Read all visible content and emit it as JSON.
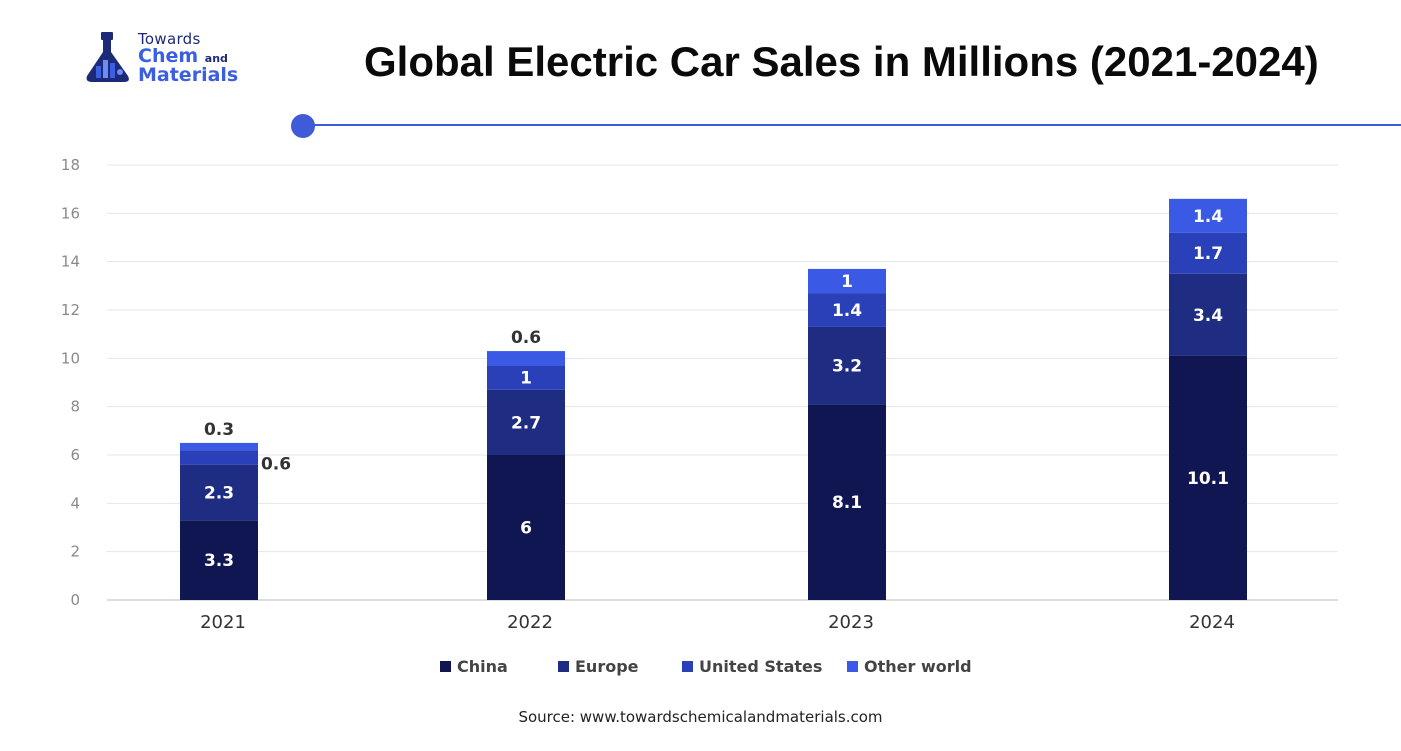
{
  "logo": {
    "line1": "Towards",
    "line2": "Chem",
    "line2_small": "and",
    "line3": "Materials"
  },
  "title": "Global Electric Car Sales in Millions (2021-2024)",
  "source": "Source: www.towardschemicalandmaterials.com",
  "colors": {
    "title": "#0a0a0a",
    "accent": "#3f5bd8",
    "China": "#101652",
    "Europe": "#1e2c82",
    "United States": "#2a40b8",
    "Other world": "#3a5ae6"
  },
  "chart_data": {
    "type": "bar",
    "stacked": true,
    "categories": [
      "2021",
      "2022",
      "2023",
      "2024"
    ],
    "series": [
      {
        "name": "China",
        "values": [
          3.3,
          6,
          8.1,
          10.1
        ]
      },
      {
        "name": "Europe",
        "values": [
          2.3,
          2.7,
          3.2,
          3.4
        ]
      },
      {
        "name": "United States",
        "values": [
          0.6,
          1,
          1.4,
          1.7
        ]
      },
      {
        "name": "Other world",
        "values": [
          0.3,
          0.6,
          1,
          1.4
        ]
      }
    ],
    "data_labels": [
      [
        "3.3",
        "2.3",
        "0.6",
        "0.3"
      ],
      [
        "6",
        "2.7",
        "1",
        "0.6"
      ],
      [
        "8.1",
        "3.2",
        "1.4",
        "1"
      ],
      [
        "10.1",
        "3.4",
        "1.7",
        "1.4"
      ]
    ],
    "ylim": [
      0,
      18
    ],
    "yticks": [
      "0",
      "2",
      "4",
      "6",
      "8",
      "10",
      "12",
      "14",
      "16",
      "18"
    ],
    "grid": true,
    "legend": "bottom"
  }
}
